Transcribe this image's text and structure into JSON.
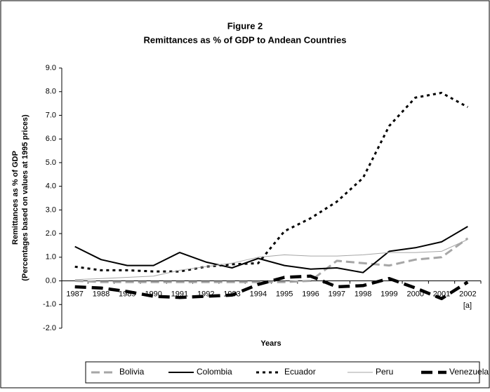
{
  "chart_data": {
    "type": "line",
    "title": "Figure 2",
    "subtitle": "Remittances as % of GDP to Andean Countries",
    "y_label": [
      "Remittances as % of GDP",
      "(Percentages based on values at 1995 prices)"
    ],
    "x_label": "Years",
    "annotation": "[a]",
    "categories": [
      "1987",
      "1988",
      "1989",
      "1990",
      "1991",
      "1992",
      "1993",
      "1994",
      "1995",
      "1996",
      "1997",
      "1998",
      "1999",
      "2000",
      "2001",
      "2002"
    ],
    "ylim": [
      -2,
      9
    ],
    "yticks": [
      {
        "value": -2,
        "label": "-2.0"
      },
      {
        "value": -1,
        "label": "-1.0"
      },
      {
        "value": 0,
        "label": "0.0"
      },
      {
        "value": 1,
        "label": "1.0"
      },
      {
        "value": 2,
        "label": "2.0"
      },
      {
        "value": 3,
        "label": "3.0"
      },
      {
        "value": 4,
        "label": "4.0"
      },
      {
        "value": 5,
        "label": "5.0"
      },
      {
        "value": 6,
        "label": "6.0"
      },
      {
        "value": 7,
        "label": "7.0"
      },
      {
        "value": 8,
        "label": "8.0"
      },
      {
        "value": 9,
        "label": "9.0"
      }
    ],
    "legend": "bottom",
    "series": [
      {
        "name": "Bolivia",
        "color": "#a6a6a6",
        "values": [
          0.0,
          -0.05,
          -0.05,
          -0.05,
          -0.05,
          -0.05,
          -0.05,
          -0.05,
          -0.05,
          0.0,
          0.85,
          0.75,
          0.65,
          0.9,
          1.0,
          1.8
        ]
      },
      {
        "name": "Colombia",
        "color": "#000000",
        "values": [
          1.45,
          0.9,
          0.65,
          0.65,
          1.2,
          0.8,
          0.55,
          0.95,
          0.65,
          0.5,
          0.55,
          0.35,
          1.25,
          1.4,
          1.65,
          2.3
        ]
      },
      {
        "name": "Ecuador",
        "color": "#000000",
        "values": [
          0.6,
          0.45,
          0.45,
          0.4,
          0.4,
          0.6,
          0.7,
          0.75,
          2.1,
          2.65,
          3.35,
          4.35,
          6.55,
          7.75,
          7.95,
          7.35
        ]
      },
      {
        "name": "Peru",
        "color": "#a6a6a6",
        "values": [
          0.05,
          0.1,
          0.15,
          0.2,
          0.45,
          0.6,
          0.75,
          1.0,
          1.1,
          1.05,
          1.05,
          1.1,
          1.2,
          1.2,
          1.25,
          1.75
        ]
      },
      {
        "name": "Venezuela",
        "color": "#000000",
        "values": [
          -0.25,
          -0.3,
          -0.45,
          -0.65,
          -0.7,
          -0.65,
          -0.6,
          -0.15,
          0.15,
          0.2,
          -0.25,
          -0.2,
          0.1,
          -0.3,
          -0.75,
          -0.05
        ]
      }
    ]
  }
}
